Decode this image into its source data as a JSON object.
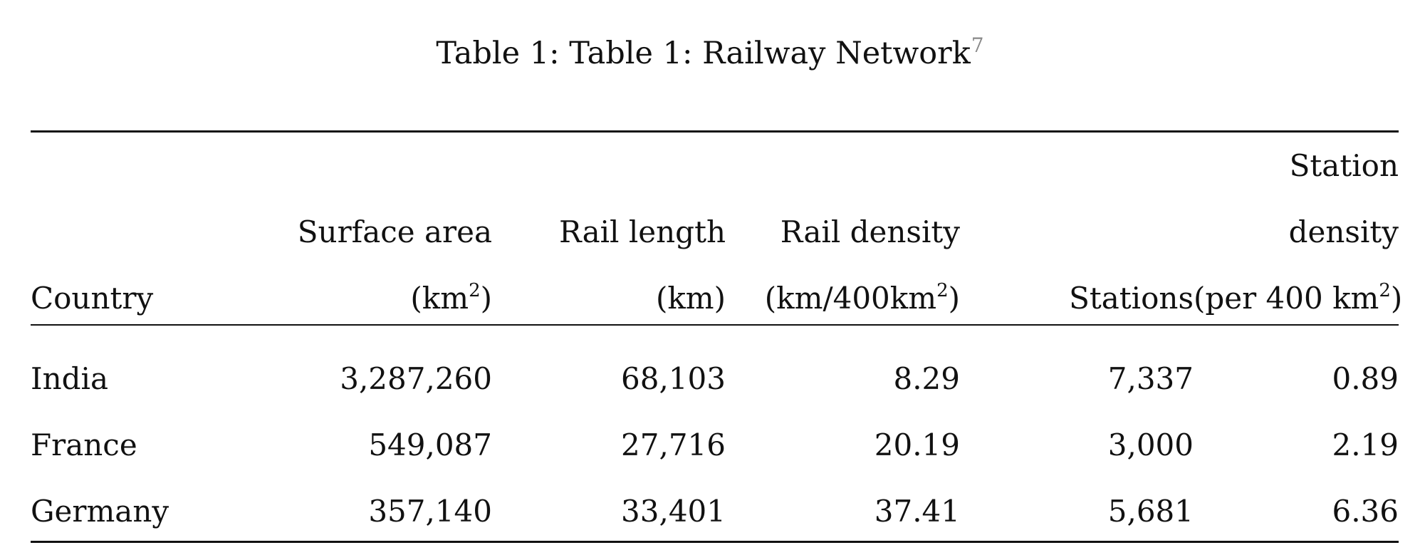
{
  "caption": {
    "text": "Table 1: Table 1: Railway Network",
    "footnote_mark": "7"
  },
  "table": {
    "headers": [
      {
        "key": "country",
        "lines": [
          "Country"
        ]
      },
      {
        "key": "surface_area",
        "lines": [
          "Surface area",
          "(km",
          ")"
        ],
        "sup": "2"
      },
      {
        "key": "rail_length",
        "lines": [
          "Rail length",
          "(km)"
        ]
      },
      {
        "key": "rail_density",
        "lines": [
          "Rail density",
          "(km/400km",
          ")"
        ],
        "sup": "2"
      },
      {
        "key": "stations",
        "lines": [
          "Stations"
        ]
      },
      {
        "key": "station_density",
        "lines": [
          "Station",
          "density",
          "(per 400 km",
          ")"
        ],
        "sup": "2"
      }
    ],
    "rows": [
      {
        "country": "India",
        "surface_area": "3,287,260",
        "rail_length": "68,103",
        "rail_density": "8.29",
        "stations": "7,337",
        "station_density": "0.89"
      },
      {
        "country": "France",
        "surface_area": "549,087",
        "rail_length": "27,716",
        "rail_density": "20.19",
        "stations": "3,000",
        "station_density": "2.19"
      },
      {
        "country": "Germany",
        "surface_area": "357,140",
        "rail_length": "33,401",
        "rail_density": "37.41",
        "stations": "5,681",
        "station_density": "6.36"
      }
    ]
  }
}
